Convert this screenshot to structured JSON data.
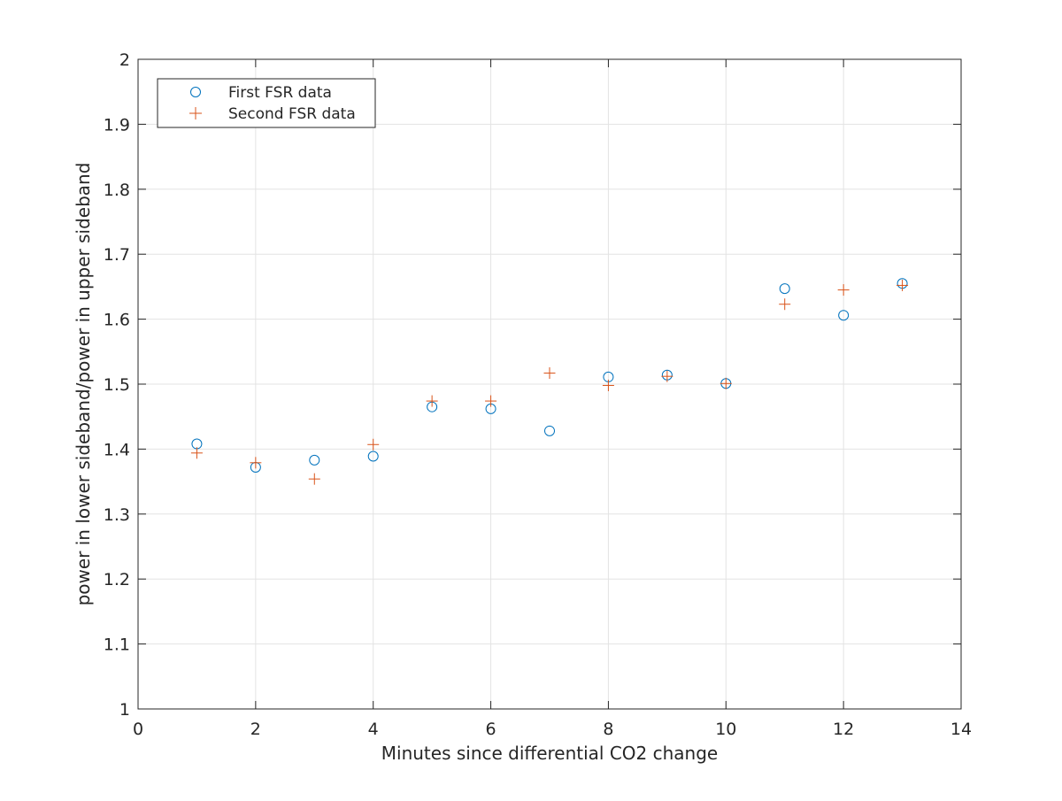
{
  "chart_data": {
    "type": "scatter",
    "title": "",
    "xlabel": "Minutes since differential CO2 change",
    "ylabel": "power in lower sideband/power in upper sideband",
    "xlim": [
      0,
      14
    ],
    "ylim": [
      1,
      2
    ],
    "xticks": [
      0,
      2,
      4,
      6,
      8,
      10,
      12,
      14
    ],
    "yticks": [
      1,
      1.1,
      1.2,
      1.3,
      1.4,
      1.5,
      1.6,
      1.7,
      1.8,
      1.9,
      2
    ],
    "xtick_labels": [
      "0",
      "2",
      "4",
      "6",
      "8",
      "10",
      "12",
      "14"
    ],
    "ytick_labels": [
      "1",
      "1.1",
      "1.2",
      "1.3",
      "1.4",
      "1.5",
      "1.6",
      "1.7",
      "1.8",
      "1.9",
      "2"
    ],
    "grid": true,
    "legend_position": "top-left",
    "series": [
      {
        "name": "First FSR data",
        "marker": "circle",
        "color": "#0072BD",
        "x": [
          1,
          2,
          3,
          4,
          5,
          6,
          7,
          8,
          9,
          10,
          11,
          12,
          13
        ],
        "y": [
          1.408,
          1.372,
          1.383,
          1.389,
          1.465,
          1.462,
          1.428,
          1.511,
          1.514,
          1.501,
          1.647,
          1.606,
          1.655
        ]
      },
      {
        "name": "Second FSR data",
        "marker": "plus",
        "color": "#D95319",
        "x": [
          1,
          2,
          3,
          4,
          5,
          6,
          7,
          8,
          9,
          10,
          11,
          12,
          13
        ],
        "y": [
          1.394,
          1.379,
          1.354,
          1.407,
          1.474,
          1.474,
          1.517,
          1.498,
          1.512,
          1.501,
          1.623,
          1.645,
          1.652
        ]
      }
    ]
  }
}
